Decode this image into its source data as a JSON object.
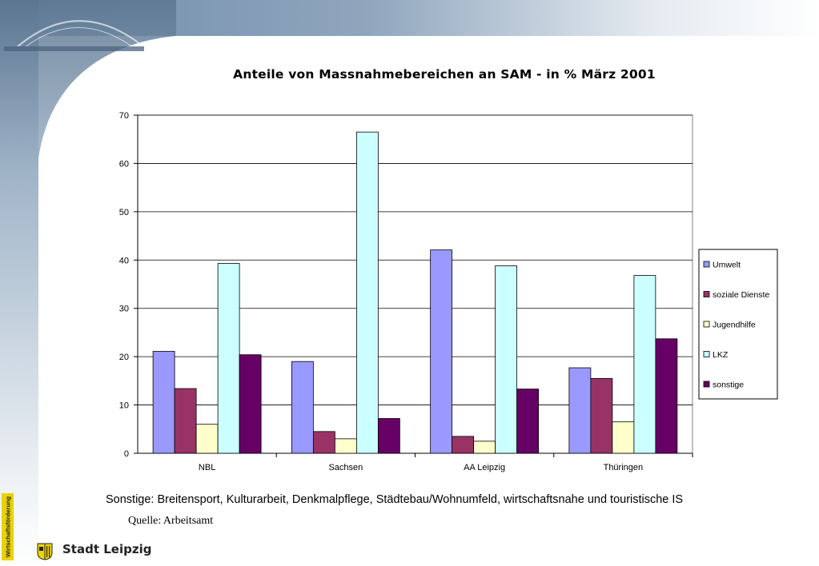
{
  "slide": {
    "footnote": "Sonstige: Breitensport, Kulturarbeit, Denkmalpflege, Städtebau/Wohnumfeld, wirtschaftsnahe und touristische IS",
    "source": "Quelle: Arbeitsamt",
    "brand": "Stadt Leipzig",
    "side_label": "Wirtschaftsförderung"
  },
  "chart_data": {
    "type": "bar",
    "title": "Anteile von Massnahmebereichen an SAM - in % März 2001",
    "categories": [
      "NBL",
      "Sachsen",
      "AA Leipzig",
      "Thüringen"
    ],
    "series": [
      {
        "name": "Umwelt",
        "color": "#9999ff",
        "values": [
          21.1,
          19.0,
          42.1,
          17.7
        ]
      },
      {
        "name": "soziale Dienste",
        "color": "#993366",
        "values": [
          13.4,
          4.5,
          3.5,
          15.5
        ]
      },
      {
        "name": "Jugendhilfe",
        "color": "#ffffcc",
        "values": [
          6.0,
          3.0,
          2.5,
          6.5
        ]
      },
      {
        "name": "LKZ",
        "color": "#ccffff",
        "values": [
          39.3,
          66.5,
          38.8,
          36.8
        ]
      },
      {
        "name": "sonstige",
        "color": "#660066",
        "values": [
          20.4,
          7.2,
          13.3,
          23.7
        ]
      }
    ],
    "yticks": [
      0,
      10,
      20,
      30,
      40,
      50,
      60,
      70
    ],
    "ylim": [
      0,
      70
    ],
    "grid": true,
    "legend": "right"
  }
}
